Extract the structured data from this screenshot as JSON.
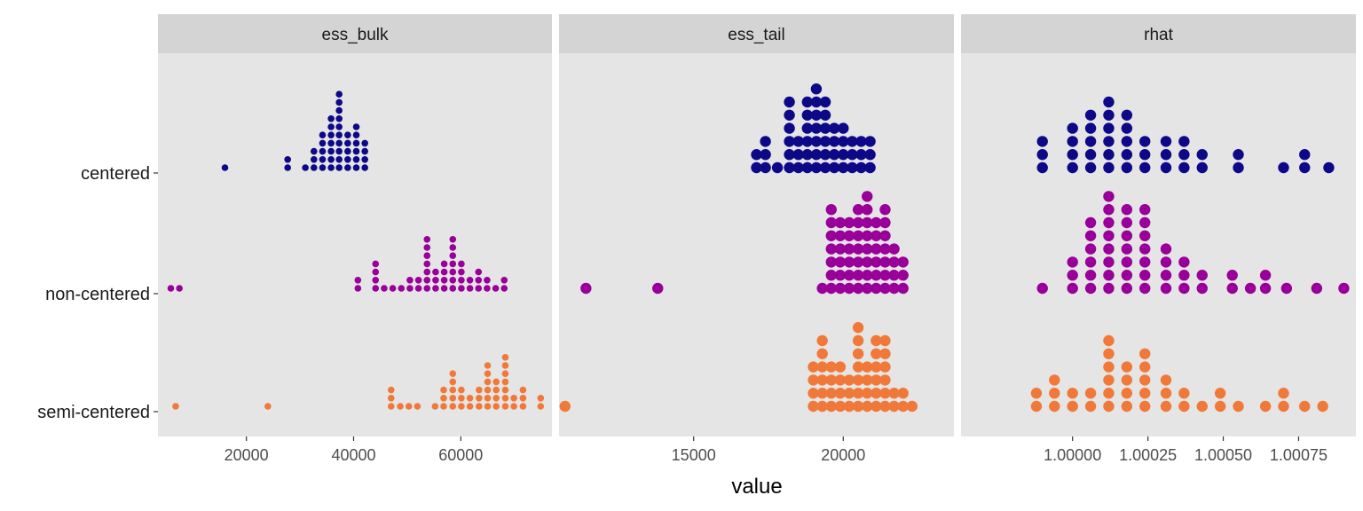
{
  "chart_data": {
    "type": "dotplot",
    "xlabel": "value",
    "ylabel": "",
    "categories": [
      "centered",
      "non-centered",
      "semi-centered"
    ],
    "colors": {
      "centered": "#0d0887",
      "non-centered": "#990099",
      "semi-centered": "#f0793a",
      "panel_bg": "#e5e5e5",
      "strip_bg": "#d4d4d4",
      "tick": "#333333"
    },
    "facets": [
      {
        "name": "ess_bulk",
        "xlim": [
          3500,
          77000
        ],
        "xticks": [
          {
            "v": 20000,
            "label": "20000"
          },
          {
            "v": 40000,
            "label": "40000"
          },
          {
            "v": 60000,
            "label": "60000"
          }
        ],
        "binwidth": 1620,
        "series": {
          "centered": [
            [
              16000,
              1
            ],
            [
              27700,
              2
            ],
            [
              31000,
              1
            ],
            [
              32600,
              3
            ],
            [
              34200,
              5
            ],
            [
              35800,
              7
            ],
            [
              37300,
              10
            ],
            [
              38900,
              5
            ],
            [
              40500,
              6
            ],
            [
              42100,
              4
            ]
          ],
          "non-centered": [
            [
              5900,
              1
            ],
            [
              7500,
              1
            ],
            [
              40800,
              2
            ],
            [
              44100,
              4
            ],
            [
              45700,
              1
            ],
            [
              47300,
              1
            ],
            [
              48900,
              1
            ],
            [
              50500,
              2
            ],
            [
              52100,
              2
            ],
            [
              53700,
              7
            ],
            [
              55300,
              3
            ],
            [
              56900,
              4
            ],
            [
              58500,
              7
            ],
            [
              60100,
              4
            ],
            [
              61700,
              2
            ],
            [
              63300,
              3
            ],
            [
              64900,
              2
            ],
            [
              66500,
              1
            ],
            [
              68100,
              2
            ]
          ],
          "semi-centered": [
            [
              6800,
              1
            ],
            [
              24000,
              1
            ],
            [
              47000,
              3
            ],
            [
              48700,
              1
            ],
            [
              50300,
              1
            ],
            [
              51900,
              1
            ],
            [
              55200,
              1
            ],
            [
              56800,
              3
            ],
            [
              58500,
              5
            ],
            [
              60100,
              3
            ],
            [
              61700,
              2
            ],
            [
              63400,
              3
            ],
            [
              65000,
              6
            ],
            [
              66600,
              4
            ],
            [
              68300,
              7
            ],
            [
              69900,
              2
            ],
            [
              71600,
              3
            ],
            [
              74900,
              2
            ]
          ]
        }
      },
      {
        "name": "ess_tail",
        "xlim": [
          10500,
          23700
        ],
        "xticks": [
          {
            "v": 15000,
            "label": "15000"
          },
          {
            "v": 20000,
            "label": "20000"
          }
        ],
        "binwidth": 300,
        "series": {
          "centered": [
            [
              17100,
              2
            ],
            [
              17400,
              3
            ],
            [
              17800,
              1
            ],
            [
              18200,
              6
            ],
            [
              18500,
              3
            ],
            [
              18800,
              6
            ],
            [
              19100,
              7
            ],
            [
              19400,
              6
            ],
            [
              19700,
              4
            ],
            [
              20000,
              4
            ],
            [
              20300,
              3
            ],
            [
              20600,
              3
            ],
            [
              20900,
              3
            ]
          ],
          "non-centered": [
            [
              11400,
              1
            ],
            [
              13800,
              1
            ],
            [
              19300,
              1
            ],
            [
              19600,
              7
            ],
            [
              19900,
              6
            ],
            [
              20200,
              6
            ],
            [
              20500,
              7
            ],
            [
              20800,
              8
            ],
            [
              21100,
              6
            ],
            [
              21400,
              7
            ],
            [
              21700,
              4
            ],
            [
              22000,
              3
            ]
          ],
          "semi-centered": [
            [
              10700,
              1
            ],
            [
              19000,
              4
            ],
            [
              19300,
              6
            ],
            [
              19600,
              4
            ],
            [
              19900,
              4
            ],
            [
              20200,
              3
            ],
            [
              20500,
              7
            ],
            [
              20800,
              4
            ],
            [
              21100,
              6
            ],
            [
              21400,
              6
            ],
            [
              21700,
              2
            ],
            [
              22000,
              2
            ],
            [
              22300,
              1
            ]
          ]
        }
      },
      {
        "name": "rhat",
        "xlim": [
          0.99963,
          1.00094
        ],
        "xticks": [
          {
            "v": 1.0,
            "label": "1.00000"
          },
          {
            "v": 1.00025,
            "label": "1.00025"
          },
          {
            "v": 1.0005,
            "label": "1.00050"
          },
          {
            "v": 1.00075,
            "label": "1.00075"
          }
        ],
        "binwidth": 3.1e-05,
        "series": {
          "centered": [
            [
              0.9999,
              3
            ],
            [
              1.0,
              4
            ],
            [
              1.00006,
              5
            ],
            [
              1.00012,
              6
            ],
            [
              1.00018,
              5
            ],
            [
              1.00024,
              3
            ],
            [
              1.00031,
              3
            ],
            [
              1.00037,
              3
            ],
            [
              1.00043,
              2
            ],
            [
              1.00055,
              2
            ],
            [
              1.0007,
              1
            ],
            [
              1.00077,
              2
            ],
            [
              1.00085,
              1
            ]
          ],
          "non-centered": [
            [
              0.9999,
              1
            ],
            [
              1.0,
              3
            ],
            [
              1.00006,
              6
            ],
            [
              1.00012,
              8
            ],
            [
              1.00018,
              7
            ],
            [
              1.00024,
              7
            ],
            [
              1.00031,
              4
            ],
            [
              1.00037,
              3
            ],
            [
              1.00043,
              2
            ],
            [
              1.00053,
              2
            ],
            [
              1.00059,
              1
            ],
            [
              1.00064,
              2
            ],
            [
              1.00071,
              1
            ],
            [
              1.00081,
              1
            ],
            [
              1.0009,
              1
            ]
          ],
          "semi-centered": [
            [
              0.99988,
              2
            ],
            [
              0.99994,
              3
            ],
            [
              1.0,
              2
            ],
            [
              1.00006,
              2
            ],
            [
              1.00012,
              6
            ],
            [
              1.00018,
              4
            ],
            [
              1.00024,
              5
            ],
            [
              1.00031,
              3
            ],
            [
              1.00037,
              2
            ],
            [
              1.00043,
              1
            ],
            [
              1.00049,
              2
            ],
            [
              1.00055,
              1
            ],
            [
              1.00064,
              1
            ],
            [
              1.0007,
              2
            ],
            [
              1.00077,
              1
            ],
            [
              1.00083,
              1
            ]
          ]
        }
      }
    ]
  }
}
